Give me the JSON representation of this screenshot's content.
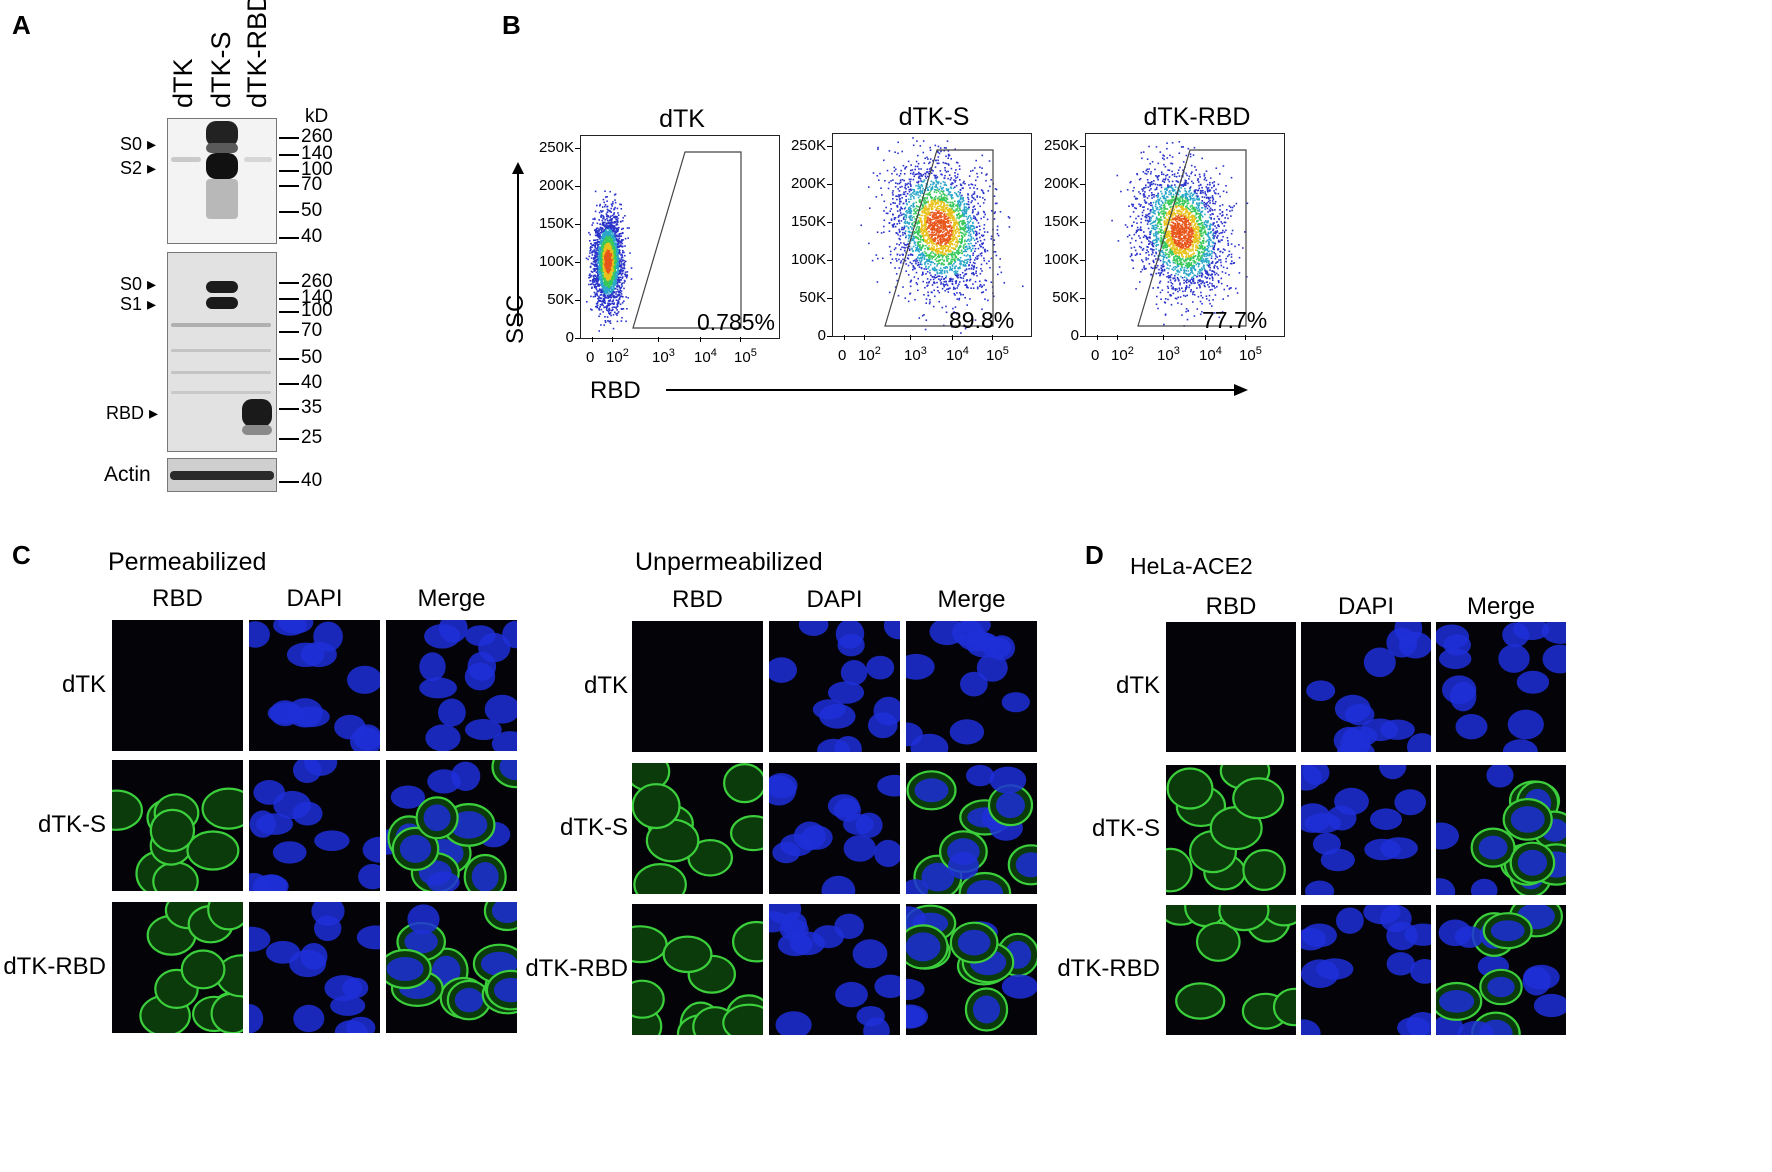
{
  "panels": {
    "a": "A",
    "b": "B",
    "c": "C",
    "d": "D"
  },
  "western": {
    "lanes": [
      "dTK",
      "dTK-S",
      "dTK-RBD"
    ],
    "unit": "kD",
    "top_blot": {
      "markers": [
        "260",
        "140",
        "100",
        "70",
        "50",
        "40"
      ],
      "band_labels": [
        "S0",
        "S2"
      ]
    },
    "middle_blot": {
      "markers": [
        "260",
        "140",
        "100",
        "70",
        "50",
        "40",
        "35",
        "25"
      ],
      "band_labels": [
        "S0",
        "S1",
        "RBD"
      ]
    },
    "actin_blot": {
      "label": "Actin",
      "markers": [
        "40"
      ]
    },
    "arrow_glyph": "▸"
  },
  "flow": {
    "y_axis_label": "SSC",
    "x_axis_label": "RBD",
    "y_ticks": [
      "250K",
      "200K",
      "150K",
      "100K",
      "50K",
      "0"
    ],
    "x_ticks": [
      "0",
      "10",
      "10",
      "10",
      "10"
    ],
    "x_tick_exponents": [
      "",
      "2",
      "3",
      "4",
      "5"
    ],
    "plots": [
      {
        "title": "dTK",
        "percent": "0.785%",
        "positive_fraction": 0.00785
      },
      {
        "title": "dTK-S",
        "percent": "89.8%",
        "positive_fraction": 0.898
      },
      {
        "title": "dTK-RBD",
        "percent": "77.7%",
        "positive_fraction": 0.777
      }
    ]
  },
  "microscopy_c": {
    "permeabilized": {
      "title": "Permeabilized",
      "columns": [
        "RBD",
        "DAPI",
        "Merge"
      ],
      "rows": [
        "dTK",
        "dTK-S",
        "dTK-RBD"
      ]
    },
    "unpermeabilized": {
      "title": "Unpermeabilized",
      "columns": [
        "RBD",
        "DAPI",
        "Merge"
      ],
      "rows": [
        "dTK",
        "dTK-S",
        "dTK-RBD"
      ]
    }
  },
  "microscopy_d": {
    "title": "HeLa-ACE2",
    "columns": [
      "RBD",
      "DAPI",
      "Merge"
    ],
    "rows": [
      "dTK",
      "dTK-S",
      "dTK-RBD"
    ]
  },
  "colors": {
    "dapi": "#1f2fd8",
    "rbd": "#3ccf3c",
    "micro_bg": "#030308"
  }
}
